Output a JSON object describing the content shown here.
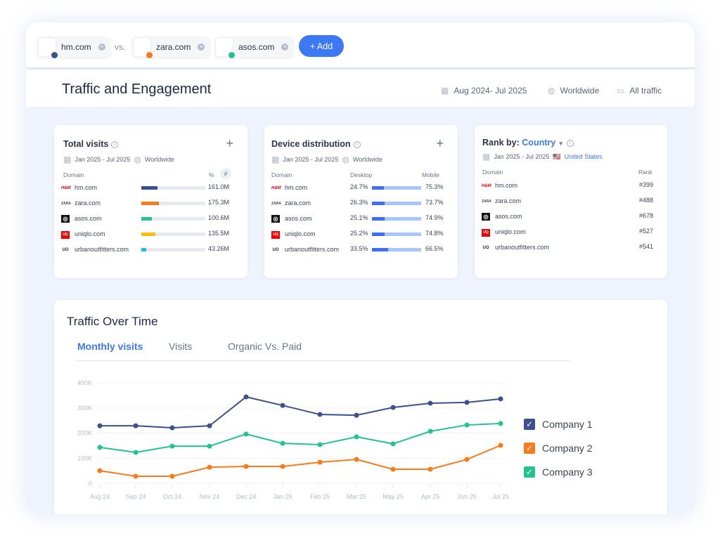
{
  "compare": {
    "chips": [
      {
        "label": "hm.com",
        "color": "#3d4f8c"
      },
      {
        "label": "zara.com",
        "color": "#fb7a1c"
      },
      {
        "label": "asos.com",
        "color": "#22c38e"
      }
    ],
    "vs": "vs.",
    "add": "+ Add"
  },
  "page": {
    "title": "Traffic and Engagement",
    "date_range": "Aug 2024- Jul 2025",
    "region": "Worldwide",
    "traffic": "All traffic"
  },
  "total_visits": {
    "title": "Total visits",
    "date": "Jan 2025 - Jul 2025",
    "region": "Worldwide",
    "col_domain": "Domain",
    "col_pct": "%",
    "col_num": "#",
    "rows": [
      {
        "domain": "hm.com",
        "logo": "H&M",
        "value": "161.0M",
        "share": 0.25,
        "color": "#3d4f8c"
      },
      {
        "domain": "zara.com",
        "logo": "ZARA",
        "value": "175.3M",
        "share": 0.28,
        "color": "#fb7a1c"
      },
      {
        "domain": "asos.com",
        "logo": "a",
        "value": "100.6M",
        "share": 0.17,
        "color": "#22c38e"
      },
      {
        "domain": "uniqlo.com",
        "logo": "UQ",
        "value": "135.5M",
        "share": 0.22,
        "color": "#fbbf10"
      },
      {
        "domain": "urbanoutfitters.com",
        "logo": "UO",
        "value": "43.26M",
        "share": 0.08,
        "color": "#1ec0e8"
      }
    ]
  },
  "device": {
    "title": "Device distribution",
    "date": "Jan 2025 - Jul 2025",
    "region": "Worldwide",
    "col_domain": "Domain",
    "col_desktop": "Desktop",
    "col_mobile": "Mobile",
    "rows": [
      {
        "domain": "hm.com",
        "logo": "H&M",
        "desktop": "24.7%",
        "mobile": "75.3%",
        "d": 24.7
      },
      {
        "domain": "zara.com",
        "logo": "ZARA",
        "desktop": "26.3%",
        "mobile": "73.7%",
        "d": 26.3
      },
      {
        "domain": "asos.com",
        "logo": "a",
        "desktop": "25.1%",
        "mobile": "74.9%",
        "d": 25.1
      },
      {
        "domain": "uniqlo.com",
        "logo": "UQ",
        "desktop": "25.2%",
        "mobile": "74.8%",
        "d": 25.2
      },
      {
        "domain": "urbanoutfitters.com",
        "logo": "UO",
        "desktop": "33.5%",
        "mobile": "66.5%",
        "d": 33.5
      }
    ]
  },
  "rank": {
    "title": "Rank by:",
    "selector": "Country",
    "date": "Jan 2025 - Jul 2025",
    "country": "United States",
    "col_domain": "Domain",
    "col_rank": "Rank",
    "rows": [
      {
        "domain": "hm.com",
        "logo": "H&M",
        "rank": "#399"
      },
      {
        "domain": "zara.com",
        "logo": "ZARA",
        "rank": "#488"
      },
      {
        "domain": "asos.com",
        "logo": "a",
        "rank": "#678"
      },
      {
        "domain": "uniqlo.com",
        "logo": "UQ",
        "rank": "#527"
      },
      {
        "domain": "urbanoutfitters.com",
        "logo": "UO",
        "rank": "#541"
      }
    ]
  },
  "traffic": {
    "title": "Traffic Over Time",
    "tabs": [
      "Monthly visits",
      "Visits",
      "Organic Vs. Paid"
    ]
  },
  "chart_data": {
    "type": "line",
    "categories": [
      "Aug 24",
      "Sep 24",
      "Oct 24",
      "Nov 24",
      "Dec 24",
      "Jan 25",
      "Feb 25",
      "Mar 25",
      "May 25",
      "Apr 25",
      "Jun 25",
      "Jul 25"
    ],
    "yticks": [
      "0",
      "100K",
      "200K",
      "300K",
      "400K"
    ],
    "ylim": [
      0,
      400000
    ],
    "series": [
      {
        "name": "Company 1",
        "color": "#3d4f8c",
        "values": [
          229000,
          229000,
          221000,
          229000,
          344000,
          310000,
          274000,
          271000,
          302000,
          319000,
          322000,
          336000
        ]
      },
      {
        "name": "Company 2",
        "color": "#fb7a1c",
        "values": [
          50000,
          28000,
          28000,
          64000,
          67000,
          67000,
          84000,
          95000,
          56000,
          56000,
          95000,
          151000
        ]
      },
      {
        "name": "Company 3",
        "color": "#22c38e",
        "values": [
          143000,
          123000,
          148000,
          148000,
          196000,
          159000,
          154000,
          185000,
          157000,
          207000,
          232000,
          238000
        ]
      }
    ]
  }
}
